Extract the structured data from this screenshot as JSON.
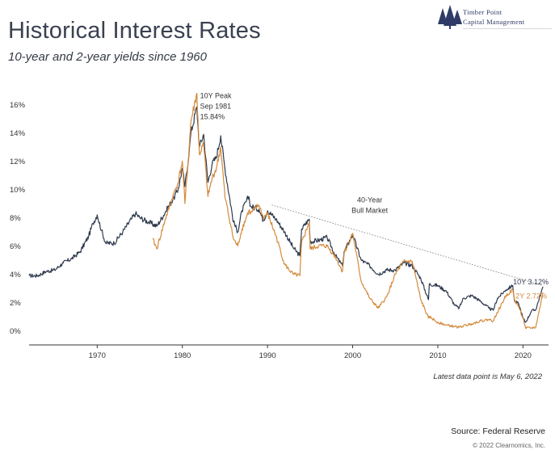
{
  "header": {
    "title": "Historical Interest Rates",
    "subtitle": "10-year and 2-year yields since 1960"
  },
  "logo": {
    "line1": "Timber Point",
    "line2": "Capital Management",
    "icon": "pine-trees-icon",
    "color": "#2f3b66"
  },
  "footer": {
    "latest_note": "Latest data point is May 6, 2022",
    "source": "Source: Federal Reserve",
    "copyright": "© 2022 Clearnomics, Inc."
  },
  "colors": {
    "y10": "#2e3a4e",
    "y2": "#d48a3c",
    "axis": "#333333",
    "trend": "#888888"
  },
  "chart_data": {
    "type": "line",
    "title": "Historical Interest Rates",
    "subtitle": "10-year and 2-year yields since 1960",
    "xlim": [
      1962,
      2023
    ],
    "ylim": [
      -1,
      17
    ],
    "x_ticks": [
      1970,
      1980,
      1990,
      2000,
      2010,
      2020
    ],
    "y_ticks": [
      0,
      2,
      4,
      6,
      8,
      10,
      12,
      14,
      16
    ],
    "y_tick_labels": [
      "0%",
      "2%",
      "4%",
      "6%",
      "8%",
      "10%",
      "12%",
      "14%",
      "16%"
    ],
    "grid": false,
    "series": [
      {
        "name": "10Y",
        "x": [
          1962,
          1963,
          1964,
          1965,
          1966,
          1967,
          1968,
          1969,
          1969.5,
          1970,
          1970.5,
          1971,
          1972,
          1973,
          1974,
          1974.5,
          1975,
          1976,
          1977,
          1978,
          1979,
          1979.5,
          1980,
          1980.3,
          1980.8,
          1981,
          1981.7,
          1982,
          1982.5,
          1983,
          1983.5,
          1984,
          1984.5,
          1985,
          1986,
          1986.5,
          1987,
          1987.8,
          1988,
          1989,
          1989.5,
          1990,
          1991,
          1992,
          1993,
          1993.8,
          1994,
          1994.9,
          1995,
          1996,
          1997,
          1998,
          1998.8,
          1999,
          2000,
          2001,
          2002,
          2003,
          2004,
          2005,
          2006,
          2007,
          2008,
          2008.9,
          2009,
          2010,
          2011,
          2012,
          2012.5,
          2013,
          2014,
          2015,
          2016,
          2016.5,
          2017,
          2018,
          2018.8,
          2019,
          2019.5,
          2020,
          2020.3,
          2021,
          2021.5,
          2022.35
        ],
        "values": [
          3.9,
          3.9,
          4.2,
          4.3,
          4.8,
          5.1,
          5.6,
          6.7,
          7.6,
          8.2,
          7.1,
          6.2,
          6.2,
          7.0,
          7.9,
          8.3,
          8.0,
          7.7,
          7.4,
          8.4,
          9.4,
          10.0,
          11.5,
          10.2,
          12.7,
          14.0,
          15.84,
          13.0,
          13.9,
          10.5,
          11.8,
          12.3,
          13.8,
          11.5,
          7.7,
          7.0,
          8.5,
          9.5,
          8.8,
          8.6,
          7.8,
          8.5,
          7.9,
          7.0,
          5.9,
          5.3,
          7.2,
          7.9,
          6.3,
          6.4,
          6.6,
          5.3,
          4.6,
          5.6,
          6.8,
          5.0,
          4.6,
          4.0,
          4.3,
          4.3,
          4.8,
          4.6,
          3.7,
          2.2,
          3.3,
          3.2,
          2.8,
          1.8,
          1.6,
          2.3,
          2.5,
          2.1,
          1.6,
          1.45,
          2.3,
          2.9,
          3.2,
          2.1,
          1.9,
          0.9,
          0.6,
          1.4,
          1.5,
          3.12
        ]
      },
      {
        "name": "2Y",
        "x": [
          1976.5,
          1977,
          1978,
          1979,
          1979.5,
          1980,
          1980.3,
          1980.8,
          1981,
          1981.7,
          1982,
          1982.5,
          1983,
          1983.5,
          1984,
          1984.5,
          1985,
          1986,
          1986.5,
          1987,
          1987.8,
          1988,
          1989,
          1989.5,
          1990,
          1991,
          1992,
          1993,
          1993.8,
          1994,
          1994.9,
          1995,
          1996,
          1997,
          1998,
          1998.8,
          1999,
          2000,
          2001,
          2002,
          2003,
          2004,
          2005,
          2006,
          2007,
          2008,
          2008.9,
          2009,
          2010,
          2011,
          2012,
          2012.5,
          2013,
          2014,
          2015,
          2016,
          2016.5,
          2017,
          2018,
          2018.8,
          2019,
          2019.5,
          2020,
          2020.3,
          2021,
          2021.5,
          2022.35
        ],
        "values": [
          6.5,
          5.8,
          7.9,
          9.7,
          10.5,
          12.0,
          9.0,
          13.0,
          14.8,
          16.8,
          12.5,
          13.2,
          9.5,
          10.8,
          11.5,
          13.0,
          9.5,
          6.5,
          6.0,
          7.2,
          8.5,
          8.3,
          8.9,
          8.0,
          8.3,
          6.7,
          4.7,
          4.0,
          3.9,
          6.2,
          7.7,
          5.8,
          6.0,
          6.0,
          5.2,
          4.2,
          5.5,
          6.9,
          3.5,
          2.3,
          1.6,
          2.4,
          4.0,
          4.9,
          4.9,
          2.2,
          0.9,
          1.0,
          0.6,
          0.4,
          0.3,
          0.25,
          0.35,
          0.5,
          0.7,
          0.8,
          0.7,
          1.3,
          2.5,
          2.9,
          2.2,
          1.7,
          0.9,
          0.2,
          0.2,
          0.25,
          2.72
        ]
      }
    ],
    "trendline": {
      "x": [
        1990.5,
        2022.3
      ],
      "values": [
        8.9,
        3.2
      ]
    },
    "annotations": {
      "peak": {
        "lines": [
          "10Y Peak",
          "Sep 1981",
          "15.84%"
        ],
        "x": 1981.7,
        "y": 15.84
      },
      "bull": {
        "lines": [
          "40-Year",
          "Bull Market"
        ],
        "x": 2002,
        "y": 8.0
      },
      "y10_label": "10Y 3.12%",
      "y2_label": "2Y 2.72%"
    }
  }
}
